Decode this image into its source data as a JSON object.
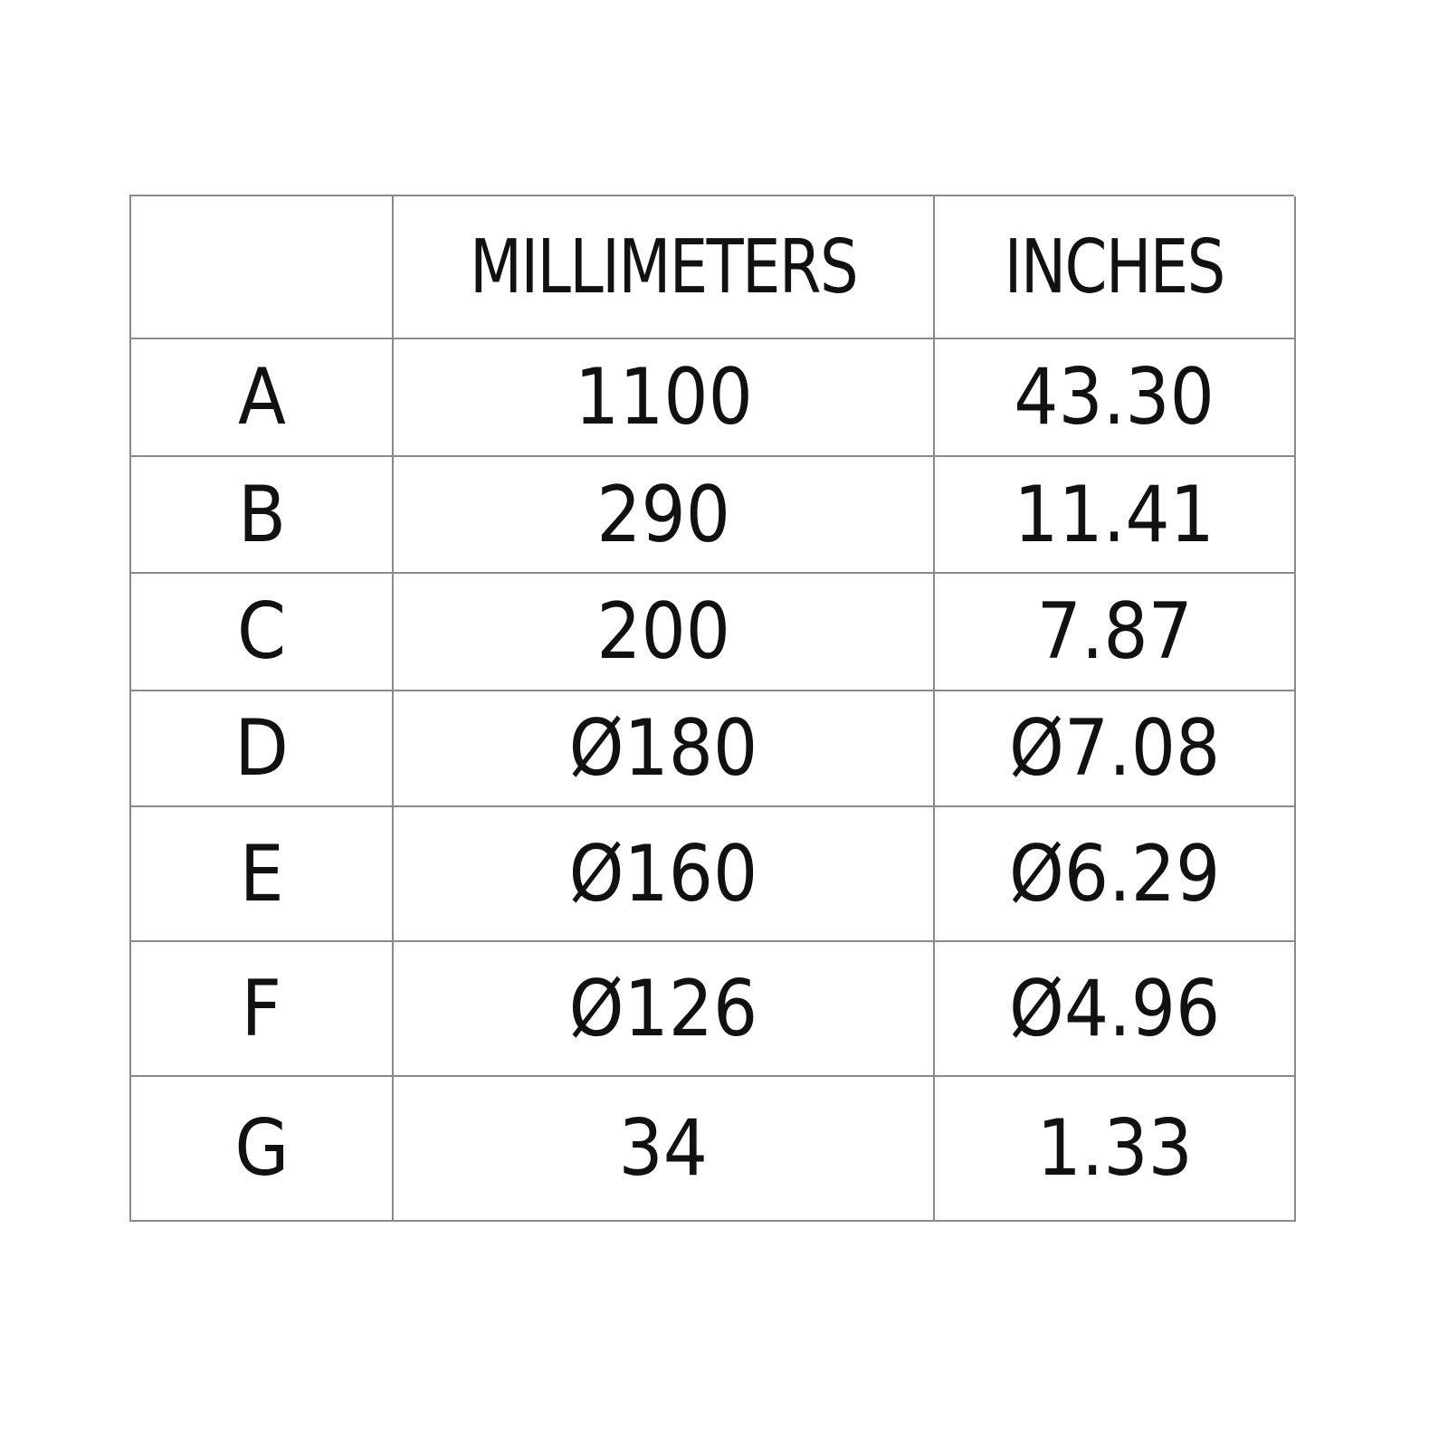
{
  "table": {
    "headers": [
      "",
      "MILLIMETERS",
      "INCHES"
    ],
    "rows": [
      {
        "label": "A",
        "mm": "1100",
        "in": "43.30"
      },
      {
        "label": "B",
        "mm": "290",
        "in": "11.41"
      },
      {
        "label": "C",
        "mm": "200",
        "in": "7.87"
      },
      {
        "label": "D",
        "mm": "Ø180",
        "in": "Ø7.08"
      },
      {
        "label": "E",
        "mm": "Ø160",
        "in": "Ø6.29"
      },
      {
        "label": "F",
        "mm": "Ø126",
        "in": "Ø4.96"
      },
      {
        "label": "G",
        "mm": "34",
        "in": "1.33"
      }
    ]
  },
  "colors": {
    "grid": "#8a8a8a",
    "text": "#111111"
  }
}
